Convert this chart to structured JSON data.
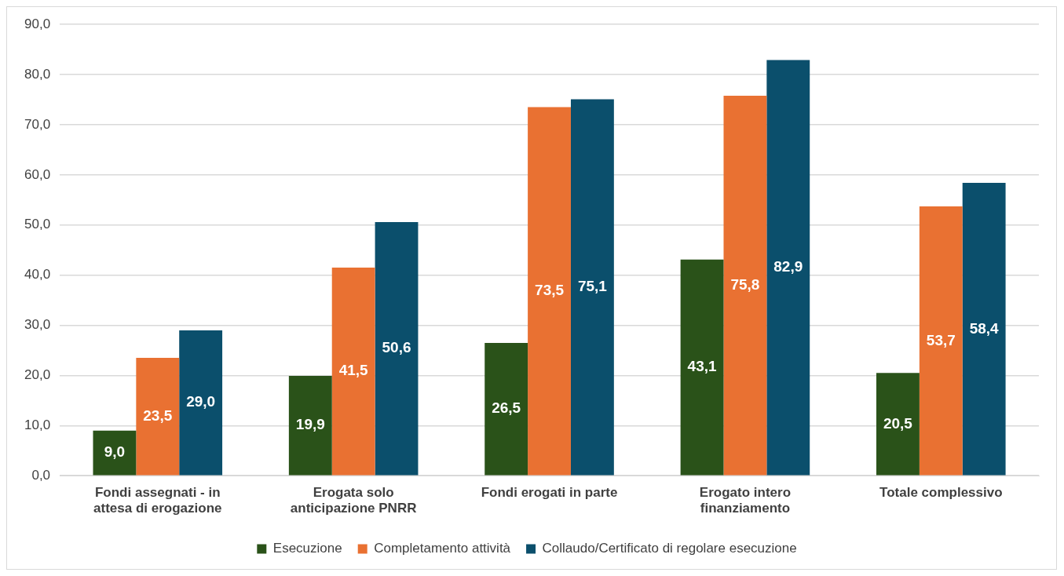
{
  "chart_data": {
    "type": "bar",
    "categories": [
      "Fondi assegnati - in attesa di erogazione",
      "Erogata solo anticipazione PNRR",
      "Fondi erogati in parte",
      "Erogato intero finanziamento",
      "Totale complessivo"
    ],
    "series": [
      {
        "name": "Esecuzione",
        "color": "#2a5219",
        "values": [
          9.0,
          19.9,
          26.5,
          43.1,
          20.5
        ],
        "value_labels": [
          "9,0",
          "19,9",
          "26,5",
          "43,1",
          "20,5"
        ]
      },
      {
        "name": "Completamento attività",
        "color": "#e97132",
        "values": [
          23.5,
          41.5,
          73.5,
          75.8,
          53.7
        ],
        "value_labels": [
          "23,5",
          "41,5",
          "73,5",
          "75,8",
          "53,7"
        ]
      },
      {
        "name": "Collaudo/Certificato di regolare esecuzione",
        "color": "#0b4f6c",
        "values": [
          29.0,
          50.6,
          75.1,
          82.9,
          58.4
        ],
        "value_labels": [
          "29,0",
          "50,6",
          "75,1",
          "82,9",
          "58,4"
        ]
      }
    ],
    "ylim": [
      0,
      90
    ],
    "yticks": [
      {
        "value": 0,
        "label": "0,0"
      },
      {
        "value": 10,
        "label": "10,0"
      },
      {
        "value": 20,
        "label": "20,0"
      },
      {
        "value": 30,
        "label": "30,0"
      },
      {
        "value": 40,
        "label": "40,0"
      },
      {
        "value": 50,
        "label": "50,0"
      },
      {
        "value": 60,
        "label": "60,0"
      },
      {
        "value": 70,
        "label": "70,0"
      },
      {
        "value": 80,
        "label": "80,0"
      },
      {
        "value": 90,
        "label": "90,0"
      }
    ],
    "grid": "y",
    "legend": "bottom"
  }
}
